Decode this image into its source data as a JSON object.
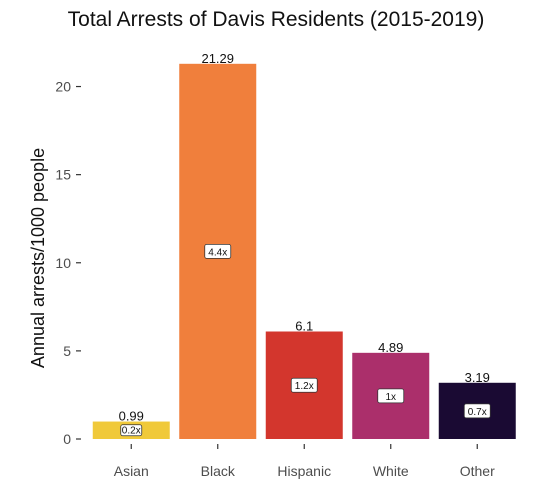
{
  "chart_data": {
    "type": "bar",
    "title": "Total Arrests of Davis Residents (2015-2019)",
    "xlabel": "",
    "ylabel": "Annual arrests/1000 people",
    "categories": [
      "Asian",
      "Black",
      "Hispanic",
      "White",
      "Other"
    ],
    "values": [
      0.99,
      21.29,
      6.1,
      4.89,
      3.19
    ],
    "value_labels": [
      "0.99",
      "21.29",
      "6.1",
      "4.89",
      "3.19"
    ],
    "ratio_labels": [
      "0.2x",
      "4.4x",
      "1.2x",
      "1x",
      "0.7x"
    ],
    "colors": [
      "#f0c93a",
      "#f07f3c",
      "#d3362d",
      "#ab2f6b",
      "#1a0a33"
    ],
    "ylim": [
      0,
      22.3
    ],
    "yticks": [
      0,
      5,
      10,
      15,
      20
    ],
    "grid": false,
    "legend": "none"
  }
}
